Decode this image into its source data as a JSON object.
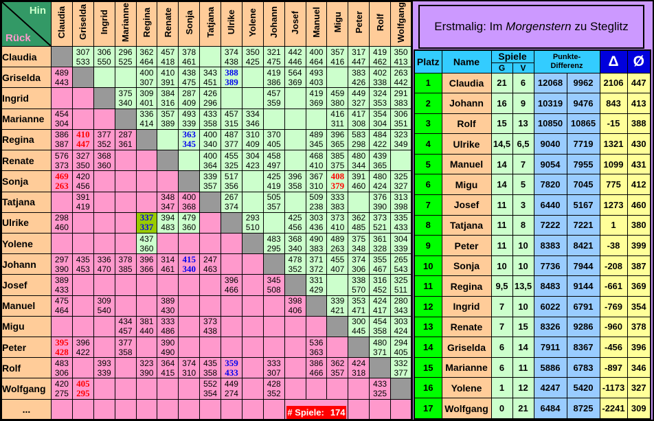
{
  "palette": {
    "pink": "#FF99CC",
    "green_light": "#CCFFCC",
    "tan": "#FFCC99",
    "gray_diag": "#999999",
    "corner_green": "#339966",
    "lavender": "#CC99FF",
    "cyan": "#33CCFF",
    "blue_dark": "#0000DD",
    "green_bright": "#00FF00",
    "blue_light": "#99CCFF",
    "yellow_light": "#FFFF99",
    "olive": "#99CC00",
    "red": "#FF0000",
    "blue_text": "#0000EE",
    "hin_text": "#CCFFCC",
    "rueck_text": "#FF99CC"
  },
  "title": {
    "prefix": "Erstmalig: Im ",
    "italic": "Morgenstern",
    "suffix": " zu Steglitz"
  },
  "matrix": {
    "corner": {
      "hin": "Hin",
      "rueck": "Rück"
    },
    "players": [
      "Claudia",
      "Griselda",
      "Ingrid",
      "Marianne",
      "Regina",
      "Renate",
      "Sonja",
      "Tatjana",
      "Ulrike",
      "Yolene",
      "Johann",
      "Josef",
      "Manuel",
      "Migu",
      "Peter",
      "Rolf",
      "Wolfgang"
    ],
    "last_row_label": "...",
    "footer": {
      "label": "# Spiele:",
      "count": "174"
    },
    "rows": [
      [
        null,
        [
          307,
          533
        ],
        [
          306,
          550
        ],
        [
          296,
          525
        ],
        [
          362,
          464
        ],
        [
          457,
          418
        ],
        [
          378,
          461
        ],
        null,
        [
          374,
          438
        ],
        [
          350,
          425
        ],
        [
          321,
          475
        ],
        [
          442,
          446
        ],
        [
          400,
          464
        ],
        [
          357,
          416
        ],
        [
          317,
          447
        ],
        [
          419,
          462
        ],
        [
          350,
          413
        ]
      ],
      [
        [
          489,
          443
        ],
        null,
        null,
        null,
        [
          400,
          307
        ],
        [
          410,
          391
        ],
        [
          438,
          475
        ],
        [
          343,
          451
        ],
        [
          388,
          389,
          "b"
        ],
        null,
        [
          419,
          386
        ],
        [
          564,
          369
        ],
        [
          493,
          403
        ],
        null,
        [
          383,
          426
        ],
        [
          402,
          338
        ],
        [
          263,
          442
        ]
      ],
      [
        null,
        null,
        null,
        [
          375,
          340
        ],
        [
          309,
          401
        ],
        [
          384,
          316
        ],
        [
          287,
          409
        ],
        [
          426,
          296
        ],
        null,
        null,
        [
          457,
          359
        ],
        null,
        [
          419,
          369
        ],
        [
          459,
          380
        ],
        [
          449,
          327
        ],
        [
          324,
          353
        ],
        [
          291,
          383
        ]
      ],
      [
        [
          454,
          304
        ],
        null,
        null,
        null,
        [
          336,
          414
        ],
        [
          357,
          389
        ],
        [
          493,
          339
        ],
        [
          433,
          358
        ],
        [
          457,
          315
        ],
        [
          334,
          346
        ],
        null,
        null,
        null,
        [
          416,
          311
        ],
        [
          417,
          308
        ],
        [
          354,
          304
        ],
        [
          306,
          351
        ]
      ],
      [
        [
          386,
          387
        ],
        [
          410,
          447,
          "r"
        ],
        [
          377,
          352
        ],
        [
          287,
          361
        ],
        null,
        null,
        [
          363,
          345,
          "b"
        ],
        [
          400,
          340
        ],
        [
          487,
          377
        ],
        [
          310,
          409
        ],
        [
          370,
          405
        ],
        null,
        [
          489,
          345
        ],
        [
          396,
          365
        ],
        [
          583,
          298
        ],
        [
          484,
          422
        ],
        [
          323,
          349
        ]
      ],
      [
        [
          576,
          373
        ],
        [
          327,
          350
        ],
        [
          368,
          360
        ],
        null,
        null,
        null,
        null,
        [
          400,
          364
        ],
        [
          455,
          325
        ],
        [
          304,
          423
        ],
        [
          458,
          497
        ],
        null,
        [
          468,
          410
        ],
        [
          385,
          375
        ],
        [
          480,
          344
        ],
        [
          439,
          365
        ],
        null
      ],
      [
        [
          469,
          263,
          "r"
        ],
        [
          420,
          456
        ],
        null,
        null,
        null,
        null,
        null,
        [
          339,
          357
        ],
        [
          517,
          356
        ],
        null,
        [
          425,
          419
        ],
        [
          396,
          358
        ],
        [
          367,
          310
        ],
        [
          408,
          379,
          "r"
        ],
        [
          391,
          460
        ],
        [
          480,
          424
        ],
        [
          325,
          327
        ]
      ],
      [
        null,
        [
          391,
          419
        ],
        null,
        null,
        null,
        [
          348,
          347
        ],
        [
          400,
          368
        ],
        null,
        [
          267,
          374
        ],
        null,
        [
          505,
          357
        ],
        null,
        [
          509,
          238
        ],
        [
          333,
          383
        ],
        null,
        [
          376,
          390
        ],
        [
          313,
          398
        ]
      ],
      [
        [
          298,
          460
        ],
        null,
        null,
        null,
        [
          337,
          337,
          "bO"
        ],
        [
          394,
          483,
          "G"
        ],
        [
          479,
          360,
          "G"
        ],
        null,
        null,
        [
          293,
          510
        ],
        null,
        [
          425,
          456
        ],
        [
          303,
          436
        ],
        [
          373,
          410
        ],
        [
          362,
          485
        ],
        [
          373,
          521
        ],
        [
          335,
          433
        ]
      ],
      [
        null,
        null,
        null,
        null,
        [
          437,
          360,
          "G"
        ],
        null,
        null,
        null,
        null,
        null,
        [
          483,
          295
        ],
        [
          368,
          340
        ],
        [
          490,
          383
        ],
        [
          489,
          263
        ],
        [
          375,
          348
        ],
        [
          361,
          328
        ],
        [
          304,
          339
        ]
      ],
      [
        [
          297,
          390
        ],
        [
          435,
          453
        ],
        [
          336,
          470
        ],
        [
          378,
          385
        ],
        [
          396,
          366
        ],
        [
          314,
          461
        ],
        [
          415,
          340,
          "b"
        ],
        [
          247,
          463
        ],
        null,
        null,
        null,
        [
          478,
          352
        ],
        [
          371,
          372
        ],
        [
          455,
          407
        ],
        [
          374,
          306
        ],
        [
          355,
          467
        ],
        [
          265,
          543
        ]
      ],
      [
        [
          389,
          433
        ],
        null,
        null,
        null,
        null,
        null,
        null,
        null,
        [
          396,
          466
        ],
        null,
        [
          345,
          508
        ],
        null,
        [
          331,
          429
        ],
        null,
        [
          338,
          570
        ],
        [
          316,
          452
        ],
        [
          325,
          511
        ]
      ],
      [
        [
          475,
          464
        ],
        null,
        [
          309,
          540
        ],
        null,
        null,
        [
          389,
          430
        ],
        null,
        null,
        null,
        null,
        null,
        [
          398,
          406
        ],
        null,
        [
          339,
          421
        ],
        [
          353,
          471
        ],
        [
          424,
          417
        ],
        [
          280,
          343
        ]
      ],
      [
        null,
        null,
        null,
        [
          434,
          457
        ],
        [
          381,
          440
        ],
        [
          333,
          486
        ],
        null,
        [
          373,
          438
        ],
        null,
        null,
        null,
        null,
        null,
        null,
        [
          300,
          445
        ],
        [
          454,
          358
        ],
        [
          303,
          424
        ]
      ],
      [
        [
          395,
          428,
          "r"
        ],
        [
          396,
          422
        ],
        null,
        [
          377,
          358
        ],
        null,
        [
          390,
          490
        ],
        null,
        null,
        null,
        null,
        null,
        null,
        [
          536,
          363
        ],
        null,
        null,
        [
          480,
          371
        ],
        [
          294,
          405
        ]
      ],
      [
        [
          483,
          306
        ],
        null,
        [
          393,
          339
        ],
        null,
        [
          323,
          390
        ],
        [
          364,
          415
        ],
        [
          374,
          310
        ],
        [
          435,
          358
        ],
        [
          359,
          433,
          "b"
        ],
        null,
        [
          333,
          307
        ],
        null,
        [
          386,
          466
        ],
        [
          362,
          357
        ],
        [
          424,
          318
        ],
        null,
        [
          332,
          377
        ]
      ],
      [
        [
          420,
          275
        ],
        [
          405,
          295,
          "r"
        ],
        null,
        null,
        null,
        null,
        null,
        [
          552,
          354
        ],
        [
          449,
          274
        ],
        null,
        [
          428,
          352
        ],
        null,
        null,
        null,
        null,
        [
          433,
          325
        ],
        null
      ]
    ]
  },
  "standings": {
    "headers": {
      "platz": "Platz",
      "name": "Name",
      "spiele": "Spiele",
      "g": "G",
      "v": "V",
      "punkte_line1": "Punkte-",
      "punkte_line2": "Differenz",
      "delta": "Δ",
      "avg": "Ø"
    },
    "rows": [
      [
        "1",
        "Claudia",
        "21",
        "6",
        "12068",
        "9962",
        "2106",
        "447"
      ],
      [
        "2",
        "Johann",
        "16",
        "9",
        "10319",
        "9476",
        "843",
        "413"
      ],
      [
        "3",
        "Rolf",
        "15",
        "13",
        "10850",
        "10865",
        "-15",
        "388"
      ],
      [
        "4",
        "Ulrike",
        "14,5",
        "6,5",
        "9040",
        "7719",
        "1321",
        "430"
      ],
      [
        "5",
        "Manuel",
        "14",
        "7",
        "9054",
        "7955",
        "1099",
        "431"
      ],
      [
        "6",
        "Migu",
        "14",
        "5",
        "7820",
        "7045",
        "775",
        "412"
      ],
      [
        "7",
        "Josef",
        "11",
        "3",
        "6440",
        "5167",
        "1273",
        "460"
      ],
      [
        "8",
        "Tatjana",
        "11",
        "8",
        "7222",
        "7221",
        "1",
        "380"
      ],
      [
        "9",
        "Peter",
        "11",
        "10",
        "8383",
        "8421",
        "-38",
        "399"
      ],
      [
        "10",
        "Sonja",
        "10",
        "10",
        "7736",
        "7944",
        "-208",
        "387"
      ],
      [
        "11",
        "Regina",
        "9,5",
        "13,5",
        "8483",
        "9144",
        "-661",
        "369"
      ],
      [
        "12",
        "Ingrid",
        "7",
        "10",
        "6022",
        "6791",
        "-769",
        "354"
      ],
      [
        "13",
        "Renate",
        "7",
        "15",
        "8326",
        "9286",
        "-960",
        "378"
      ],
      [
        "14",
        "Griselda",
        "6",
        "14",
        "7911",
        "8367",
        "-456",
        "396"
      ],
      [
        "15",
        "Marianne",
        "6",
        "11",
        "5886",
        "6783",
        "-897",
        "346"
      ],
      [
        "16",
        "Yolene",
        "1",
        "12",
        "4247",
        "5420",
        "-1173",
        "327"
      ],
      [
        "17",
        "Wolfgang",
        "0",
        "21",
        "6484",
        "8725",
        "-2241",
        "309"
      ]
    ]
  }
}
